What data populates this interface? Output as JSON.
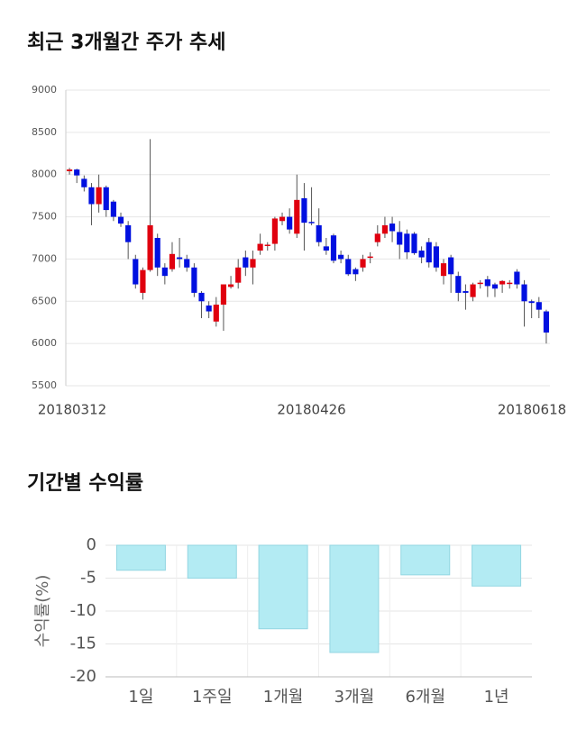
{
  "chart_data": [
    {
      "type": "candlestick",
      "title": "최근 3개월간 주가 추세",
      "categories": [
        "20180312",
        null,
        null,
        null,
        null,
        null,
        null,
        null,
        null,
        null,
        null,
        null,
        null,
        null,
        null,
        null,
        null,
        null,
        null,
        null,
        null,
        null,
        null,
        null,
        null,
        null,
        null,
        null,
        null,
        null,
        null,
        null,
        null,
        "20180426",
        null,
        null,
        null,
        null,
        null,
        null,
        null,
        null,
        null,
        null,
        null,
        null,
        null,
        null,
        null,
        null,
        null,
        null,
        null,
        null,
        null,
        null,
        null,
        null,
        null,
        null,
        null,
        null,
        null,
        null,
        null,
        "20180618"
      ],
      "open": [
        8040,
        8060,
        7950,
        7850,
        7650,
        7850,
        7680,
        7500,
        7400,
        7000,
        6600,
        6870,
        7250,
        6900,
        6880,
        7020,
        7000,
        6900,
        6600,
        6450,
        6260,
        6460,
        6670,
        6720,
        7020,
        6900,
        7100,
        7160,
        7180,
        7450,
        7500,
        7300,
        7720,
        7440,
        7400,
        7150,
        7280,
        7050,
        7000,
        6880,
        6900,
        7030,
        7200,
        7300,
        7420,
        7320,
        7300,
        7300,
        7100,
        7200,
        7150,
        6800,
        7020,
        6800,
        6620,
        6550,
        6720,
        6760,
        6700,
        6700,
        6720,
        6850,
        6700,
        6500,
        6490,
        6380
      ],
      "close": [
        8060,
        7990,
        7850,
        7650,
        7850,
        7580,
        7500,
        7420,
        7200,
        6700,
        6870,
        7400,
        6900,
        6800,
        7060,
        7000,
        6900,
        6600,
        6500,
        6380,
        6460,
        6700,
        6700,
        6900,
        6900,
        7000,
        7180,
        7170,
        7480,
        7500,
        7350,
        7700,
        7430,
        7430,
        7200,
        7100,
        6980,
        7000,
        6820,
        6820,
        7000,
        7030,
        7300,
        7400,
        7330,
        7170,
        7080,
        7070,
        7020,
        6960,
        6900,
        6950,
        6820,
        6600,
        6600,
        6700,
        6720,
        6680,
        6650,
        6740,
        6720,
        6700,
        6500,
        6480,
        6400,
        6130
      ],
      "high": [
        8080,
        8070,
        7990,
        7900,
        8000,
        7870,
        7700,
        7550,
        7450,
        7050,
        6900,
        8420,
        7300,
        6950,
        7200,
        7250,
        7050,
        6950,
        6620,
        6500,
        6550,
        6700,
        6800,
        7000,
        7100,
        7100,
        7300,
        7200,
        7500,
        7550,
        7600,
        8000,
        7900,
        7850,
        7600,
        7250,
        7300,
        7100,
        7050,
        6900,
        7050,
        7080,
        7400,
        7500,
        7500,
        7450,
        7350,
        7320,
        7150,
        7250,
        7200,
        7000,
        7050,
        6850,
        6700,
        6720,
        6750,
        6800,
        6720,
        6750,
        6750,
        6880,
        6750,
        6520,
        6550,
        6400
      ],
      "low": [
        8000,
        7900,
        7800,
        7400,
        7550,
        7500,
        7450,
        7380,
        7000,
        6650,
        6520,
        6850,
        6800,
        6700,
        6850,
        6900,
        6850,
        6550,
        6300,
        6300,
        6200,
        6150,
        6650,
        6650,
        6800,
        6700,
        7050,
        7100,
        7100,
        7400,
        7300,
        7250,
        7100,
        7400,
        7150,
        7050,
        6950,
        6950,
        6800,
        6740,
        6850,
        6950,
        7150,
        7250,
        7200,
        7000,
        7000,
        7050,
        6950,
        6900,
        6850,
        6700,
        6600,
        6500,
        6400,
        6500,
        6650,
        6550,
        6550,
        6600,
        6650,
        6650,
        6200,
        6300,
        6300,
        6000
      ],
      "up_color": "#e0000f",
      "down_color": "#0010e0",
      "ylim": [
        5500,
        9000
      ],
      "yticks": [
        5500,
        6000,
        6500,
        7000,
        7500,
        8000,
        8500,
        9000
      ],
      "grid": true
    },
    {
      "type": "bar",
      "title": "기간별 수익률",
      "ylabel": "수익률(%)",
      "categories": [
        "1일",
        "1주일",
        "1개월",
        "3개월",
        "6개월",
        "1년"
      ],
      "values": [
        -3.8,
        -5.0,
        -12.7,
        -16.3,
        -4.5,
        -6.2
      ],
      "color": "#b3ebf3",
      "ylim": [
        -20,
        0
      ],
      "yticks": [
        0,
        -5,
        -10,
        -15,
        -20
      ],
      "grid": true
    }
  ]
}
